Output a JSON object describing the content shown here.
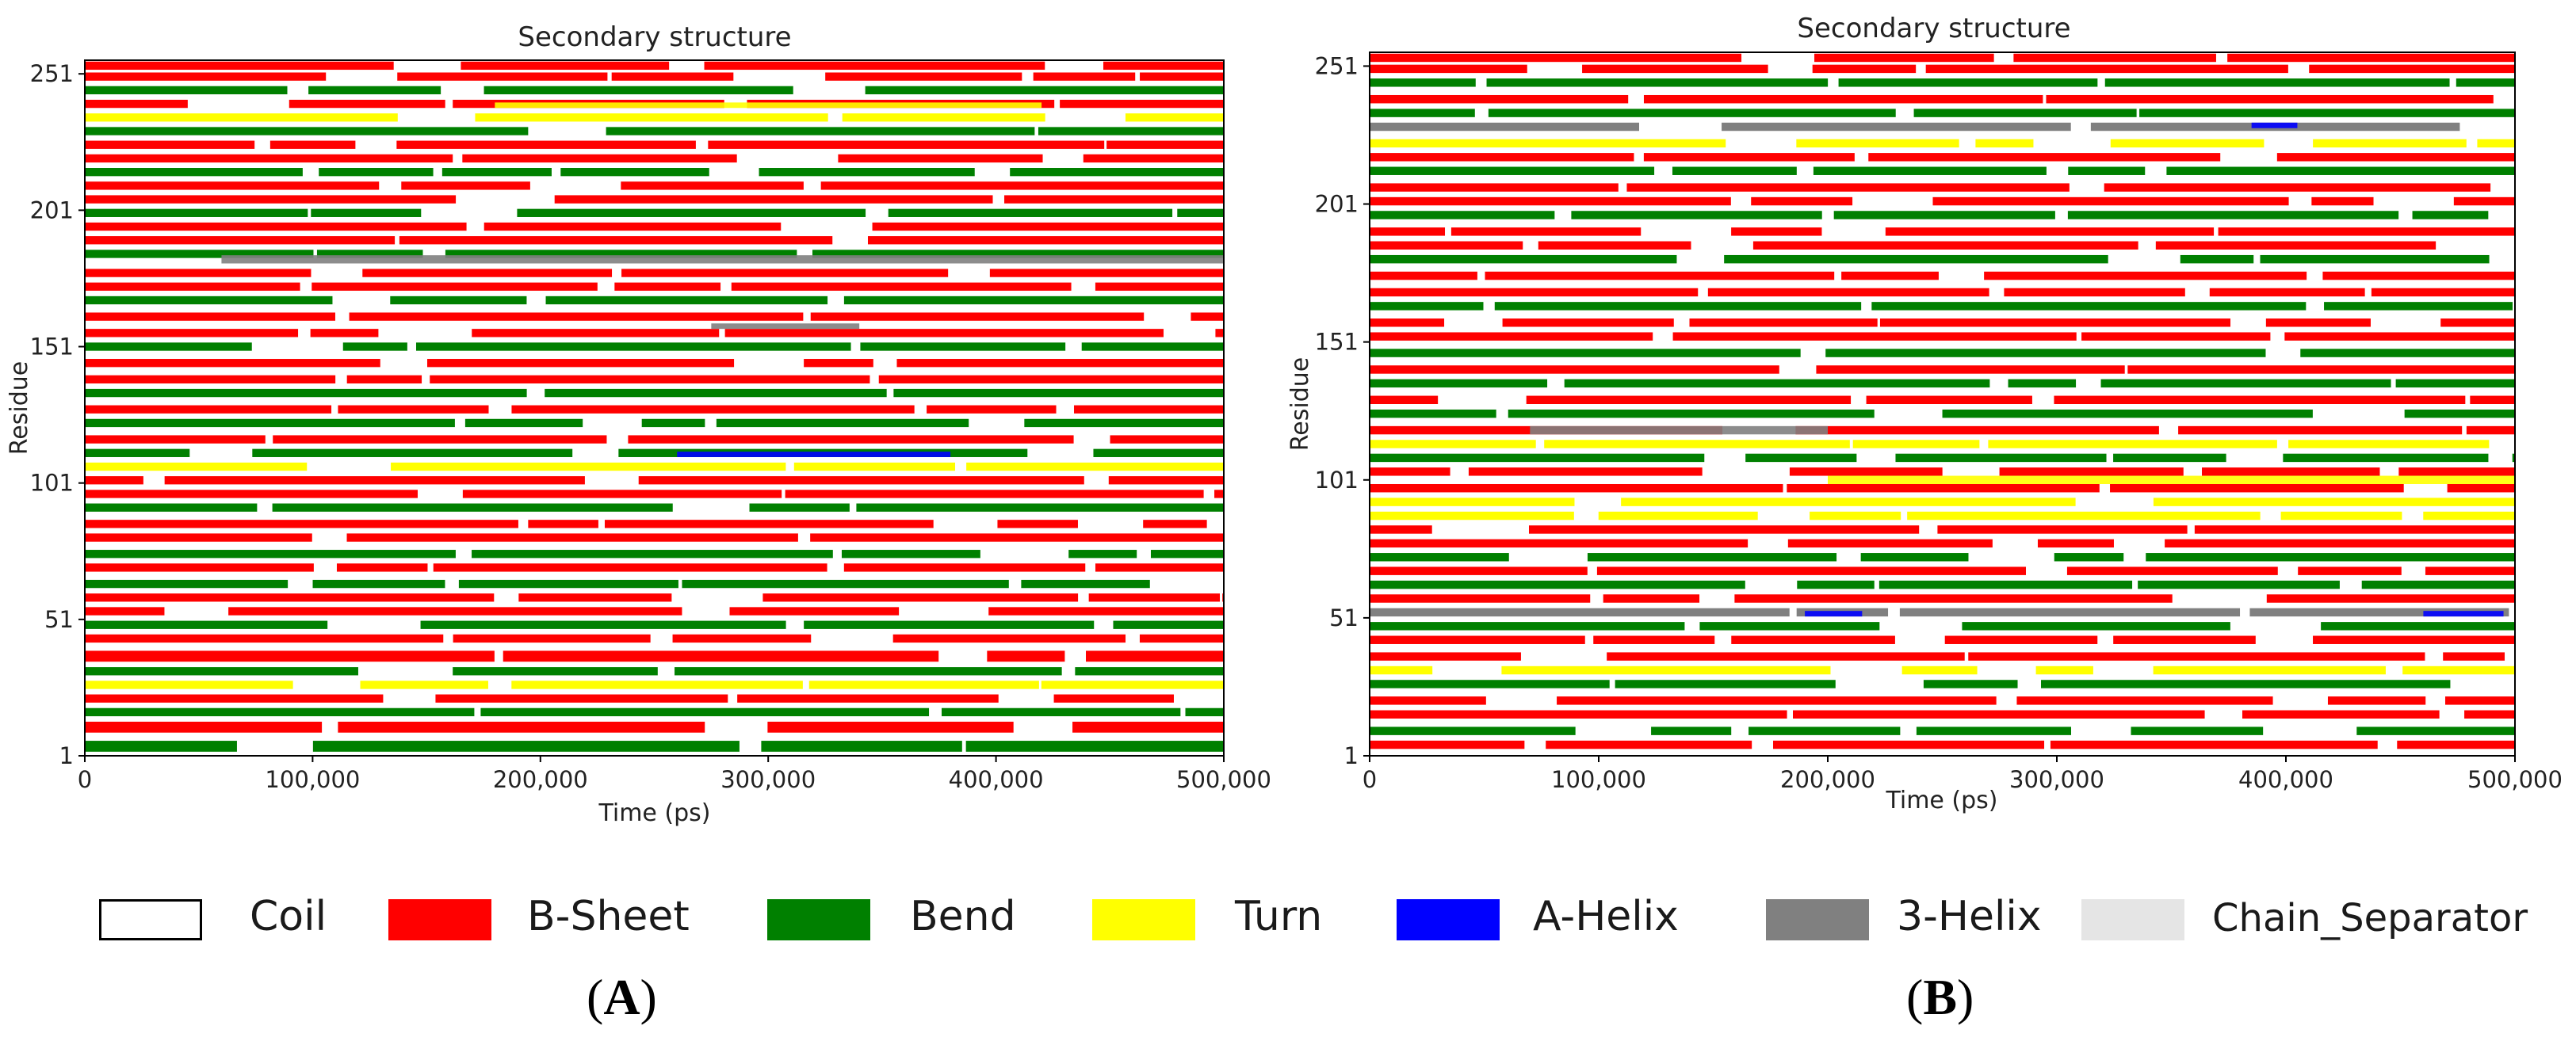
{
  "chart_data": [
    {
      "type": "heatmap",
      "panel_label": "A",
      "title": "Secondary structure",
      "xlabel": "Time (ps)",
      "ylabel": "Residue",
      "xlim": [
        0,
        500000
      ],
      "ylim": [
        1,
        256
      ],
      "x_ticks": [
        "0",
        "100,000",
        "200,000",
        "300,000",
        "400,000",
        "500,000"
      ],
      "x_tick_values": [
        0,
        100000,
        200000,
        300000,
        400000,
        500000
      ],
      "y_ticks": [
        "1",
        "51",
        "101",
        "151",
        "201",
        "251"
      ],
      "y_tick_values": [
        1,
        51,
        101,
        151,
        201,
        251
      ],
      "categories": [
        "Coil",
        "B-Sheet",
        "Bend",
        "Turn",
        "A-Helix",
        "3-Helix",
        "Chain_Separator"
      ],
      "bands": [
        {
          "residues": [
            3,
            6
          ],
          "state": "Bend"
        },
        {
          "residues": [
            10,
            13
          ],
          "state": "B-Sheet"
        },
        {
          "residues": [
            16,
            18
          ],
          "state": "Bend"
        },
        {
          "residues": [
            21,
            23
          ],
          "state": "B-Sheet"
        },
        {
          "residues": [
            26,
            28
          ],
          "state": "Turn"
        },
        {
          "residues": [
            31,
            33
          ],
          "state": "Bend"
        },
        {
          "residues": [
            36,
            39
          ],
          "state": "B-Sheet"
        },
        {
          "residues": [
            43,
            45
          ],
          "state": "B-Sheet"
        },
        {
          "residues": [
            48,
            50
          ],
          "state": "Bend"
        },
        {
          "residues": [
            53,
            55
          ],
          "state": "B-Sheet"
        },
        {
          "residues": [
            58,
            60
          ],
          "state": "B-Sheet"
        },
        {
          "residues": [
            63,
            65
          ],
          "state": "Bend"
        },
        {
          "residues": [
            69,
            71
          ],
          "state": "B-Sheet"
        },
        {
          "residues": [
            74,
            76
          ],
          "state": "Bend"
        },
        {
          "residues": [
            80,
            82
          ],
          "state": "B-Sheet"
        },
        {
          "residues": [
            85,
            87
          ],
          "state": "B-Sheet"
        },
        {
          "residues": [
            91,
            93
          ],
          "state": "Bend"
        },
        {
          "residues": [
            96,
            98
          ],
          "state": "B-Sheet"
        },
        {
          "residues": [
            101,
            103
          ],
          "state": "B-Sheet"
        },
        {
          "residues": [
            106,
            108
          ],
          "state": "Turn"
        },
        {
          "residues": [
            111,
            113
          ],
          "state": "Bend"
        },
        {
          "residues": [
            116,
            118
          ],
          "state": "B-Sheet"
        },
        {
          "residues": [
            122,
            124
          ],
          "state": "Bend"
        },
        {
          "residues": [
            127,
            129
          ],
          "state": "B-Sheet"
        },
        {
          "residues": [
            133,
            135
          ],
          "state": "Bend"
        },
        {
          "residues": [
            138,
            140
          ],
          "state": "B-Sheet"
        },
        {
          "residues": [
            144,
            146
          ],
          "state": "B-Sheet"
        },
        {
          "residues": [
            150,
            152
          ],
          "state": "Bend"
        },
        {
          "residues": [
            155,
            157
          ],
          "state": "B-Sheet"
        },
        {
          "residues": [
            161,
            163
          ],
          "state": "B-Sheet"
        },
        {
          "residues": [
            167,
            169
          ],
          "state": "Bend"
        },
        {
          "residues": [
            172,
            174
          ],
          "state": "B-Sheet"
        },
        {
          "residues": [
            177,
            179
          ],
          "state": "B-Sheet"
        },
        {
          "residues": [
            184,
            186
          ],
          "state": "Bend"
        },
        {
          "residues": [
            189,
            191
          ],
          "state": "B-Sheet"
        },
        {
          "residues": [
            194,
            196
          ],
          "state": "B-Sheet"
        },
        {
          "residues": [
            199,
            201
          ],
          "state": "Bend"
        },
        {
          "residues": [
            204,
            206
          ],
          "state": "B-Sheet"
        },
        {
          "residues": [
            209,
            211
          ],
          "state": "B-Sheet"
        },
        {
          "residues": [
            214,
            216
          ],
          "state": "Bend"
        },
        {
          "residues": [
            219,
            221
          ],
          "state": "B-Sheet"
        },
        {
          "residues": [
            224,
            226
          ],
          "state": "B-Sheet"
        },
        {
          "residues": [
            229,
            231
          ],
          "state": "Bend"
        },
        {
          "residues": [
            234,
            236
          ],
          "state": "Turn"
        },
        {
          "residues": [
            239,
            241
          ],
          "state": "B-Sheet"
        },
        {
          "residues": [
            244,
            246
          ],
          "state": "Bend"
        },
        {
          "residues": [
            249,
            251
          ],
          "state": "B-Sheet"
        },
        {
          "residues": [
            253,
            255
          ],
          "state": "B-Sheet"
        }
      ],
      "patches": [
        {
          "residues": [
            182,
            184
          ],
          "time": [
            60000,
            500000
          ],
          "state": "3-Helix"
        },
        {
          "residues": [
            158,
            159
          ],
          "time": [
            275000,
            340000
          ],
          "state": "3-Helix"
        },
        {
          "residues": [
            111,
            112
          ],
          "time": [
            260000,
            380000
          ],
          "state": "A-Helix"
        },
        {
          "residues": [
            239,
            240
          ],
          "time": [
            180000,
            420000
          ],
          "state": "Turn"
        }
      ]
    },
    {
      "type": "heatmap",
      "panel_label": "B",
      "title": "Secondary structure",
      "xlabel": "Time (ps)",
      "ylabel": "Residue",
      "xlim": [
        0,
        500000
      ],
      "ylim": [
        1,
        256
      ],
      "x_ticks": [
        "0",
        "100,000",
        "200,000",
        "300,000",
        "400,000",
        "500,000"
      ],
      "x_tick_values": [
        0,
        100000,
        200000,
        300000,
        400000,
        500000
      ],
      "y_ticks": [
        "1",
        "51",
        "101",
        "151",
        "201",
        "251"
      ],
      "y_tick_values": [
        1,
        51,
        101,
        151,
        201,
        251
      ],
      "categories": [
        "Coil",
        "B-Sheet",
        "Bend",
        "Turn",
        "A-Helix",
        "3-Helix",
        "Chain_Separator"
      ],
      "bands": [
        {
          "residues": [
            4,
            6
          ],
          "state": "B-Sheet"
        },
        {
          "residues": [
            9,
            11
          ],
          "state": "Bend"
        },
        {
          "residues": [
            15,
            17
          ],
          "state": "B-Sheet"
        },
        {
          "residues": [
            20,
            22
          ],
          "state": "B-Sheet"
        },
        {
          "residues": [
            26,
            28
          ],
          "state": "Bend"
        },
        {
          "residues": [
            31,
            33
          ],
          "state": "Turn"
        },
        {
          "residues": [
            36,
            38
          ],
          "state": "B-Sheet"
        },
        {
          "residues": [
            42,
            44
          ],
          "state": "B-Sheet"
        },
        {
          "residues": [
            47,
            49
          ],
          "state": "Bend"
        },
        {
          "residues": [
            52,
            54
          ],
          "state": "3-Helix"
        },
        {
          "residues": [
            57,
            59
          ],
          "state": "B-Sheet"
        },
        {
          "residues": [
            62,
            64
          ],
          "state": "Bend"
        },
        {
          "residues": [
            67,
            69
          ],
          "state": "B-Sheet"
        },
        {
          "residues": [
            72,
            74
          ],
          "state": "Bend"
        },
        {
          "residues": [
            77,
            79
          ],
          "state": "B-Sheet"
        },
        {
          "residues": [
            82,
            84
          ],
          "state": "B-Sheet"
        },
        {
          "residues": [
            87,
            89
          ],
          "state": "Turn"
        },
        {
          "residues": [
            92,
            94
          ],
          "state": "Turn"
        },
        {
          "residues": [
            97,
            99
          ],
          "state": "B-Sheet"
        },
        {
          "residues": [
            103,
            105
          ],
          "state": "B-Sheet"
        },
        {
          "residues": [
            108,
            110
          ],
          "state": "Bend"
        },
        {
          "residues": [
            113,
            115
          ],
          "state": "Turn"
        },
        {
          "residues": [
            118,
            120
          ],
          "state": "B-Sheet"
        },
        {
          "residues": [
            124,
            126
          ],
          "state": "Bend"
        },
        {
          "residues": [
            129,
            131
          ],
          "state": "B-Sheet"
        },
        {
          "residues": [
            135,
            137
          ],
          "state": "Bend"
        },
        {
          "residues": [
            140,
            142
          ],
          "state": "B-Sheet"
        },
        {
          "residues": [
            146,
            148
          ],
          "state": "Bend"
        },
        {
          "residues": [
            152,
            154
          ],
          "state": "B-Sheet"
        },
        {
          "residues": [
            157,
            159
          ],
          "state": "B-Sheet"
        },
        {
          "residues": [
            163,
            165
          ],
          "state": "Bend"
        },
        {
          "residues": [
            168,
            170
          ],
          "state": "B-Sheet"
        },
        {
          "residues": [
            174,
            176
          ],
          "state": "B-Sheet"
        },
        {
          "residues": [
            180,
            182
          ],
          "state": "Bend"
        },
        {
          "residues": [
            185,
            187
          ],
          "state": "B-Sheet"
        },
        {
          "residues": [
            190,
            192
          ],
          "state": "B-Sheet"
        },
        {
          "residues": [
            196,
            198
          ],
          "state": "Bend"
        },
        {
          "residues": [
            201,
            203
          ],
          "state": "B-Sheet"
        },
        {
          "residues": [
            206,
            208
          ],
          "state": "B-Sheet"
        },
        {
          "residues": [
            212,
            214
          ],
          "state": "Bend"
        },
        {
          "residues": [
            217,
            219
          ],
          "state": "B-Sheet"
        },
        {
          "residues": [
            222,
            224
          ],
          "state": "Turn"
        },
        {
          "residues": [
            228,
            230
          ],
          "state": "3-Helix"
        },
        {
          "residues": [
            233,
            235
          ],
          "state": "Bend"
        },
        {
          "residues": [
            238,
            240
          ],
          "state": "B-Sheet"
        },
        {
          "residues": [
            244,
            246
          ],
          "state": "Bend"
        },
        {
          "residues": [
            249,
            251
          ],
          "state": "B-Sheet"
        },
        {
          "residues": [
            253,
            255
          ],
          "state": "B-Sheet"
        }
      ],
      "patches": [
        {
          "residues": [
            118,
            120
          ],
          "time": [
            70000,
            200000
          ],
          "state": "3-Helix"
        },
        {
          "residues": [
            229,
            230
          ],
          "time": [
            385000,
            405000
          ],
          "state": "A-Helix"
        },
        {
          "residues": [
            52,
            53
          ],
          "time": [
            190000,
            215000
          ],
          "state": "A-Helix"
        },
        {
          "residues": [
            52,
            53
          ],
          "time": [
            460000,
            495000
          ],
          "state": "A-Helix"
        },
        {
          "residues": [
            100,
            102
          ],
          "time": [
            200000,
            500000
          ],
          "state": "Turn"
        }
      ]
    }
  ],
  "legend": {
    "items": [
      {
        "label": "Coil",
        "color": "#ffffff",
        "border": "#000000"
      },
      {
        "label": "B-Sheet",
        "color": "#ff0000"
      },
      {
        "label": "Bend",
        "color": "#008000"
      },
      {
        "label": "Turn",
        "color": "#ffff00"
      },
      {
        "label": "A-Helix",
        "color": "#0000ff"
      },
      {
        "label": "3-Helix",
        "color": "#808080"
      },
      {
        "label": "Chain_Separator",
        "color": "#e5e5e5"
      }
    ]
  },
  "panel_labels": {
    "a": "A",
    "b": "B"
  }
}
